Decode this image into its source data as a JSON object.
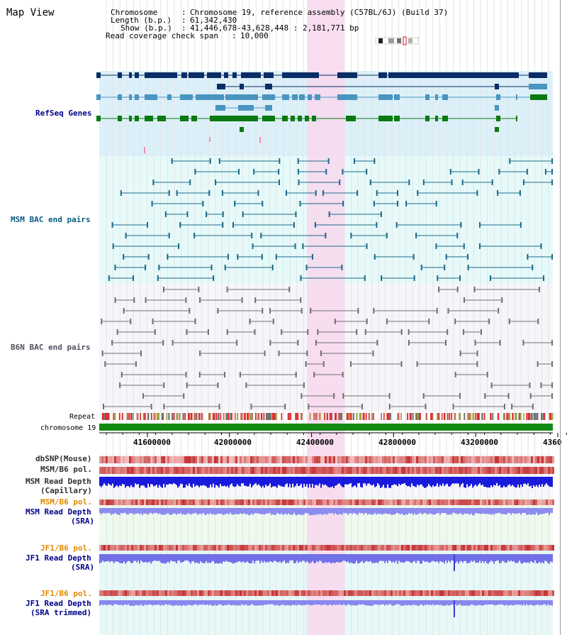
{
  "header": {
    "title": "Map View",
    "chromosome_key": "Chromosome",
    "chromosome_value": "Chromosome 19, reference assembly (C57BL/6J) (Build 37)",
    "length_key": "Length (b.p.)",
    "length_value": "61,342,430",
    "show_key": "Show (b.p.)",
    "show_value": "41,446,678-43,628,448 : 2,181,771 bp",
    "coverage_key": "Read coverage check span",
    "coverage_value": "10,000"
  },
  "tracks": {
    "refseq": "RefSeq Genes",
    "msm_bac": "MSM BAC end pairs",
    "b6n_bac": "B6N BAC end pairs",
    "repeat": "Repeat",
    "chromosome": "chromosome 19",
    "dbsnp": "dbSNP(Mouse)",
    "msm_b6_pol_1": "MSM/B6 pol.",
    "msm_read_depth_cap_1": "MSM Read Depth",
    "msm_read_depth_cap_2": "(Capillary)",
    "msm_b6_pol_2": "MSM/B6 pol.",
    "msm_read_depth_sra_1": "MSM Read Depth",
    "msm_read_depth_sra_2": "(SRA)",
    "jf1_b6_pol_1": "JF1/B6 pol.",
    "jf1_read_depth_sra_1": "JF1 Read Depth",
    "jf1_read_depth_sra_2": "(SRA)",
    "jf1_b6_pol_2": "JF1/B6 pol.",
    "jf1_read_depth_trim_1": "JF1 Read Depth",
    "jf1_read_depth_trim_2": "(SRA trimmed)"
  },
  "axis": {
    "ticks": [
      "41600000",
      "42000000",
      "42400000",
      "42800000",
      "43200000",
      "4360"
    ]
  },
  "colors": {
    "refseq_bg": "#dcf0fa",
    "msm_bg": "#e6fafa",
    "b6n_bg": "#f6f6fa",
    "highlight": "#f8d8ee",
    "gene_dark": "#0a2d66",
    "gene_mid": "#4a94c0",
    "gene_green": "#0a7a10",
    "msm_feature": "#1a6a8a",
    "b6n_feature": "#707070",
    "chromosome_bar": "#138a13",
    "pol_red": "#f04040",
    "depth_blue": "#1a1adc",
    "depth_light": "#8c8cf0",
    "label_navy": "#00008b",
    "label_orange": "#e08a00",
    "label_teal": "#0a5a80"
  }
}
